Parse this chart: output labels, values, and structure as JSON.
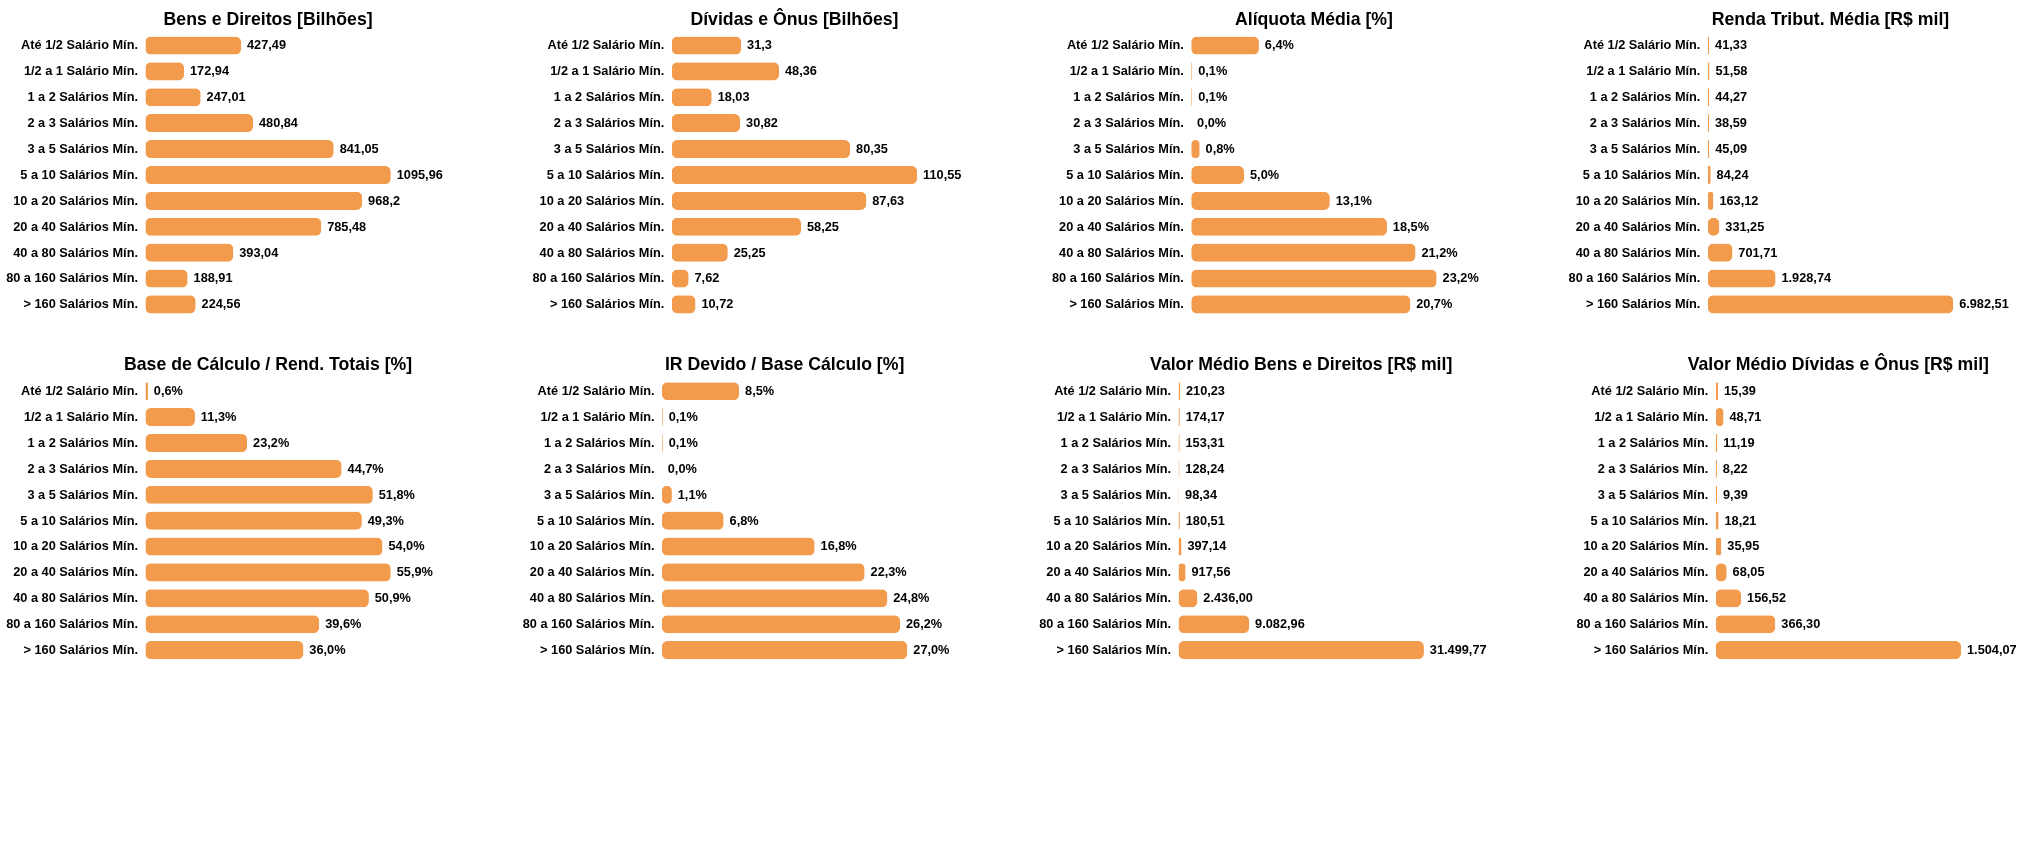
{
  "chart_data": [
    {
      "type": "bar",
      "orientation": "horizontal",
      "title": "Bens e Direitos [Bilhões]",
      "categories": [
        "Até 1/2 Salário Mín.",
        "1/2 a 1 Salário Mín.",
        "1 a 2 Salários Mín.",
        "2 a 3 Salários Mín.",
        "3 a 5 Salários Mín.",
        "5 a 10 Salários Mín.",
        "10 a 20 Salários Mín.",
        "20 a 40 Salários Mín.",
        "40 a 80 Salários Mín.",
        "80 a 160 Salários Mín.",
        "> 160 Salários Mín."
      ],
      "color": "#f39b4c",
      "values": [
        427.49,
        172.94,
        247.01,
        480.84,
        841.05,
        1095.96,
        968.2,
        785.48,
        393.04,
        188.91,
        224.56
      ],
      "value_labels": [
        "427,49",
        "172,94",
        "247,01",
        "480,84",
        "841,05",
        "1095,96",
        "968,2",
        "785,48",
        "393,04",
        "188,91",
        "224,56"
      ]
    },
    {
      "type": "bar",
      "orientation": "horizontal",
      "title": "Dívidas e Ônus [Bilhões]",
      "categories": [
        "Até 1/2 Salário Mín.",
        "1/2 a 1 Salário Mín.",
        "1 a 2 Salários Mín.",
        "2 a 3 Salários Mín.",
        "3 a 5 Salários Mín.",
        "5 a 10 Salários Mín.",
        "10 a 20 Salários Mín.",
        "20 a 40 Salários Mín.",
        "40 a 80 Salários Mín.",
        "80 a 160 Salários Mín.",
        "> 160 Salários Mín."
      ],
      "color": "#f39b4c",
      "values": [
        31.3,
        48.36,
        18.03,
        30.82,
        80.35,
        110.55,
        87.63,
        58.25,
        25.25,
        7.62,
        10.72
      ],
      "value_labels": [
        "31,3",
        "48,36",
        "18,03",
        "30,82",
        "80,35",
        "110,55",
        "87,63",
        "58,25",
        "25,25",
        "7,62",
        "10,72"
      ]
    },
    {
      "type": "bar",
      "orientation": "horizontal",
      "title": "Alíquota Média [%]",
      "categories": [
        "Até 1/2 Salário Mín.",
        "1/2 a 1 Salário Mín.",
        "1 a 2 Salários Mín.",
        "2 a 3 Salários Mín.",
        "3 a 5 Salários Mín.",
        "5 a 10 Salários Mín.",
        "10 a 20 Salários Mín.",
        "20 a 40 Salários Mín.",
        "40 a 80 Salários Mín.",
        "80 a 160 Salários Mín.",
        "> 160 Salários Mín."
      ],
      "color": "#f39b4c",
      "values": [
        6.4,
        0.1,
        0.1,
        0.0,
        0.8,
        5.0,
        13.1,
        18.5,
        21.2,
        23.2,
        20.7
      ],
      "value_labels": [
        "6,4%",
        "0,1%",
        "0,1%",
        "0,0%",
        "0,8%",
        "5,0%",
        "13,1%",
        "18,5%",
        "21,2%",
        "23,2%",
        "20,7%"
      ]
    },
    {
      "type": "bar",
      "orientation": "horizontal",
      "title": "Renda Tribut. Média [R$ mil]",
      "categories": [
        "Até 1/2 Salário Mín.",
        "1/2 a 1 Salário Mín.",
        "1 a 2 Salários Mín.",
        "2 a 3 Salários Mín.",
        "3 a 5 Salários Mín.",
        "5 a 10 Salários Mín.",
        "10 a 20 Salários Mín.",
        "20 a 40 Salários Mín.",
        "40 a 80 Salários Mín.",
        "80 a 160 Salários Mín.",
        "> 160 Salários Mín."
      ],
      "color": "#f39b4c",
      "values": [
        41.33,
        51.58,
        44.27,
        38.59,
        45.09,
        84.24,
        163.12,
        331.25,
        701.71,
        1928.74,
        6982.51
      ],
      "value_labels": [
        "41,33",
        "51,58",
        "44,27",
        "38,59",
        "45,09",
        "84,24",
        "163,12",
        "331,25",
        "701,71",
        "1.928,74",
        "6.982,51"
      ]
    },
    {
      "type": "bar",
      "orientation": "horizontal",
      "title": "Base de Cálculo / Rend. Totais [%]",
      "categories": [
        "Até 1/2 Salário Mín.",
        "1/2 a 1 Salário Mín.",
        "1 a 2 Salários Mín.",
        "2 a 3 Salários Mín.",
        "3 a 5 Salários Mín.",
        "5 a 10 Salários Mín.",
        "10 a 20 Salários Mín.",
        "20 a 40 Salários Mín.",
        "40 a 80 Salários Mín.",
        "80 a 160 Salários Mín.",
        "> 160 Salários Mín."
      ],
      "color": "#f39b4c",
      "values": [
        0.6,
        11.3,
        23.2,
        44.7,
        51.8,
        49.3,
        54.0,
        55.9,
        50.9,
        39.6,
        36.0
      ],
      "value_labels": [
        "0,6%",
        "11,3%",
        "23,2%",
        "44,7%",
        "51,8%",
        "49,3%",
        "54,0%",
        "55,9%",
        "50,9%",
        "39,6%",
        "36,0%"
      ]
    },
    {
      "type": "bar",
      "orientation": "horizontal",
      "title": "IR Devido / Base Cálculo [%]",
      "categories": [
        "Até 1/2 Salário Mín.",
        "1/2 a 1 Salário Mín.",
        "1 a 2 Salários Mín.",
        "2 a 3 Salários Mín.",
        "3 a 5 Salários Mín.",
        "5 a 10 Salários Mín.",
        "10 a 20 Salários Mín.",
        "20 a 40 Salários Mín.",
        "40 a 80 Salários Mín.",
        "80 a 160 Salários Mín.",
        "> 160 Salários Mín."
      ],
      "color": "#f39b4c",
      "values": [
        8.5,
        0.1,
        0.1,
        0.0,
        1.1,
        6.8,
        16.8,
        22.3,
        24.8,
        26.2,
        27.0
      ],
      "value_labels": [
        "8,5%",
        "0,1%",
        "0,1%",
        "0,0%",
        "1,1%",
        "6,8%",
        "16,8%",
        "22,3%",
        "24,8%",
        "26,2%",
        "27,0%"
      ]
    },
    {
      "type": "bar",
      "orientation": "horizontal",
      "title": "Valor Médio Bens e Direitos [R$ mil]",
      "categories": [
        "Até 1/2 Salário Mín.",
        "1/2 a 1 Salário Mín.",
        "1 a 2 Salários Mín.",
        "2 a 3 Salários Mín.",
        "3 a 5 Salários Mín.",
        "5 a 10 Salários Mín.",
        "10 a 20 Salários Mín.",
        "20 a 40 Salários Mín.",
        "40 a 80 Salários Mín.",
        "80 a 160 Salários Mín.",
        "> 160 Salários Mín."
      ],
      "color": "#f39b4c",
      "values": [
        210.23,
        174.17,
        153.31,
        128.24,
        98.34,
        180.51,
        397.14,
        917.56,
        2436.0,
        9082.96,
        31499.77
      ],
      "value_labels": [
        "210,23",
        "174,17",
        "153,31",
        "128,24",
        "98,34",
        "180,51",
        "397,14",
        "917,56",
        "2.436,00",
        "9.082,96",
        "31.499,77"
      ]
    },
    {
      "type": "bar",
      "orientation": "horizontal",
      "title": "Valor Médio Dívidas e Ônus [R$ mil]",
      "categories": [
        "Até 1/2 Salário Mín.",
        "1/2 a 1 Salário Mín.",
        "1 a 2 Salários Mín.",
        "2 a 3 Salários Mín.",
        "3 a 5 Salários Mín.",
        "5 a 10 Salários Mín.",
        "10 a 20 Salários Mín.",
        "20 a 40 Salários Mín.",
        "40 a 80 Salários Mín.",
        "80 a 160 Salários Mín.",
        "> 160 Salários Mín."
      ],
      "color": "#f39b4c",
      "values": [
        15.39,
        48.71,
        11.19,
        8.22,
        9.39,
        18.21,
        35.95,
        68.05,
        156.52,
        366.3,
        1504.07
      ],
      "value_labels": [
        "15,39",
        "48,71",
        "11,19",
        "8,22",
        "9,39",
        "18,21",
        "35,95",
        "68,05",
        "156,52",
        "366,30",
        "1.504,07"
      ]
    }
  ]
}
